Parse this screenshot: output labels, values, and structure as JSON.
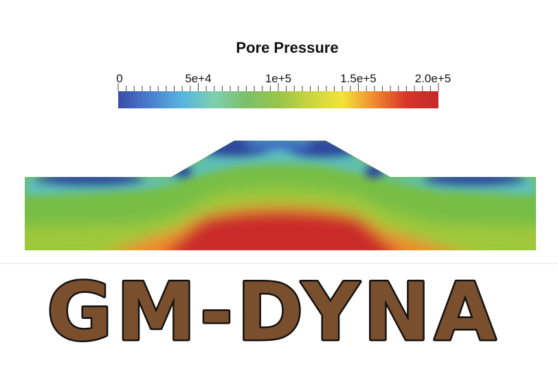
{
  "colorbar": {
    "title": "Pore Pressure",
    "min": 0,
    "max": 200000,
    "labels": [
      {
        "value": 0,
        "text": "0"
      },
      {
        "value": 50000,
        "text": "5e+4"
      },
      {
        "value": 100000,
        "text": "1e+5"
      },
      {
        "value": 150000,
        "text": "1.5e+5"
      },
      {
        "value": 200000,
        "text": "2.0e+5"
      }
    ],
    "minor_ticks": 40,
    "colors": [
      "#3a4ca6",
      "#4a7fd0",
      "#56b5df",
      "#7fcfb0",
      "#7cc06a",
      "#9ac449",
      "#c9d63e",
      "#f2e43a",
      "#ef8a2e",
      "#d8342a",
      "#c52a2a"
    ]
  },
  "field": {
    "colors": {
      "low": "#2e4a9e",
      "cyan": "#5bc0c8",
      "green": "#77be46",
      "yellow_green": "#a7c93a",
      "orange": "#f08a2f",
      "red": "#c92a2a"
    }
  },
  "logo": {
    "text": "GM-DYNA",
    "fill": "#7a4f2e",
    "stroke": "#111111"
  }
}
